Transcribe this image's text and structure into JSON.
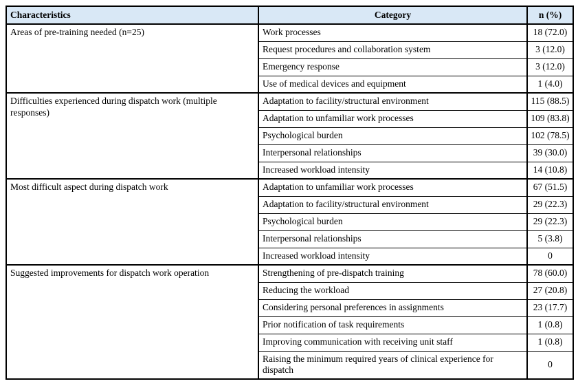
{
  "table": {
    "columns": [
      "Characteristics",
      "Category",
      "n (%)"
    ],
    "sections": [
      {
        "characteristic": "Areas of pre-training needed (n=25)",
        "rows": [
          {
            "category": "Work processes",
            "n": "18 (72.0)"
          },
          {
            "category": "Request procedures and collaboration system",
            "n": "3 (12.0)"
          },
          {
            "category": "Emergency response",
            "n": "3 (12.0)"
          },
          {
            "category": "Use of medical devices and equipment",
            "n": "1 (4.0)"
          }
        ]
      },
      {
        "characteristic": "Difficulties experienced during dispatch work (multiple responses)",
        "rows": [
          {
            "category": "Adaptation to facility/structural environment",
            "n": "115 (88.5)"
          },
          {
            "category": "Adaptation to unfamiliar work processes",
            "n": "109 (83.8)"
          },
          {
            "category": "Psychological burden",
            "n": "102 (78.5)"
          },
          {
            "category": "Interpersonal relationships",
            "n": "39 (30.0)"
          },
          {
            "category": "Increased workload intensity",
            "n": "14 (10.8)"
          }
        ]
      },
      {
        "characteristic": "Most difficult aspect during dispatch work",
        "rows": [
          {
            "category": "Adaptation to unfamiliar work processes",
            "n": "67 (51.5)"
          },
          {
            "category": "Adaptation to facility/structural environment",
            "n": "29 (22.3)"
          },
          {
            "category": "Psychological burden",
            "n": "29 (22.3)"
          },
          {
            "category": "Interpersonal relationships",
            "n": "5 (3.8)"
          },
          {
            "category": "Increased workload intensity",
            "n": "0"
          }
        ]
      },
      {
        "characteristic": "Suggested improvements for dispatch work operation",
        "rows": [
          {
            "category": "Strengthening of pre-dispatch training",
            "n": "78 (60.0)"
          },
          {
            "category": "Reducing the workload",
            "n": "27 (20.8)"
          },
          {
            "category": "Considering personal preferences in assignments",
            "n": "23 (17.7)"
          },
          {
            "category": "Prior notification of task requirements",
            "n": "1 (0.8)"
          },
          {
            "category": "Improving communication with receiving unit staff",
            "n": "1 (0.8)"
          },
          {
            "category": "Raising the minimum required years of clinical experience for dispatch",
            "n": "0"
          }
        ]
      }
    ],
    "colors": {
      "header_bg": "#d9e8f6",
      "border": "#000000",
      "text": "#000000"
    }
  }
}
